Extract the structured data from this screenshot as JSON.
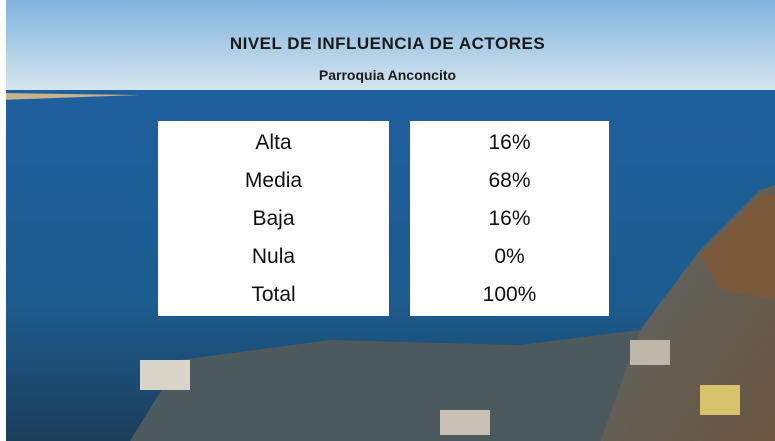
{
  "header": {
    "title": "NIVEL DE INFLUENCIA DE ACTORES",
    "subtitle": "Parroquia Anconcito"
  },
  "table": {
    "rows": [
      [
        "Alta",
        "16%"
      ],
      [
        "Media",
        "68%"
      ],
      [
        "Baja",
        "16%"
      ],
      [
        "Nula",
        "0%"
      ],
      [
        "Total",
        "100%"
      ]
    ]
  }
}
